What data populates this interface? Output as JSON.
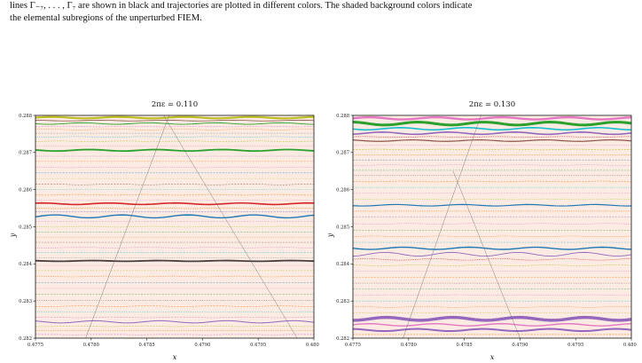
{
  "caption": {
    "line1": "lines Γ₋₇, . . . , Γ₇ are shown in black and trajectories are plotted in different colors. The shaded background colors indicate",
    "line2": "the elemental subregions of the unperturbed FIEM."
  },
  "colors": {
    "background_fill": "#fbebe3",
    "palette": [
      "#1f77b4",
      "#ff7f0e",
      "#2ca02c",
      "#d62728",
      "#9467bd",
      "#8c564b",
      "#e377c2",
      "#7f7f7f",
      "#bcbd22",
      "#17becf"
    ]
  },
  "chart_data": [
    {
      "type": "scatter",
      "title": "2πε = 0.110",
      "xlabel": "x",
      "ylabel": "y",
      "xlim": [
        0.4775,
        0.48
      ],
      "ylim": [
        0.282,
        0.288
      ],
      "xticks": [
        "0.4775",
        "0.4780",
        "0.4785",
        "0.4790",
        "0.4795",
        "0.4800"
      ],
      "yticks": [
        "0.282",
        "0.283",
        "0.284",
        "0.285",
        "0.286",
        "0.287",
        "0.288"
      ],
      "grid": false,
      "legend": "none",
      "background": "shaded subregion",
      "boundary_lines": [
        {
          "points": [
            [
              0.47795,
              0.282
            ],
            [
              0.4787,
              0.288
            ]
          ]
        },
        {
          "points": [
            [
              0.47865,
              0.288
            ],
            [
              0.47985,
              0.282
            ]
          ]
        }
      ],
      "series": [
        {
          "y": 0.28794,
          "color": "#bcbd22",
          "width": 2.2,
          "wave": 2e-05
        },
        {
          "y": 0.28786,
          "color": "#8c564b",
          "width": 0.8,
          "wave": 1e-05
        },
        {
          "y": 0.28778,
          "color": "#2ca02c",
          "width": 0.9,
          "wave": 2e-05
        },
        {
          "y": 0.2877,
          "color": "#e377c2",
          "width": 0.5,
          "wave": 1e-05
        },
        {
          "y": 0.28762,
          "color": "#ff7f0e",
          "width": 0.5,
          "wave": 1e-05
        },
        {
          "y": 0.28752,
          "color": "#7f7f7f",
          "width": 0.4,
          "wave": 0.0
        },
        {
          "y": 0.28742,
          "color": "#17becf",
          "width": 0.5,
          "wave": 1e-05
        },
        {
          "y": 0.2873,
          "color": "#bcbd22",
          "width": 0.5,
          "wave": 1e-05
        },
        {
          "y": 0.28718,
          "color": "#e377c2",
          "width": 0.4,
          "wave": 0.0
        },
        {
          "y": 0.28706,
          "color": "#2ca02c",
          "width": 1.8,
          "wave": 2e-05
        },
        {
          "y": 0.2869,
          "color": "#9467bd",
          "width": 0.4,
          "wave": 0.0
        },
        {
          "y": 0.28676,
          "color": "#ff7f0e",
          "width": 0.4,
          "wave": 0.0
        },
        {
          "y": 0.2866,
          "color": "#e377c2",
          "width": 0.5,
          "wave": 1e-05
        },
        {
          "y": 0.28645,
          "color": "#1f77b4",
          "width": 0.4,
          "wave": 0.0
        },
        {
          "y": 0.2863,
          "color": "#bcbd22",
          "width": 0.4,
          "wave": 0.0
        },
        {
          "y": 0.28614,
          "color": "#8c564b",
          "width": 0.5,
          "wave": 1e-05
        },
        {
          "y": 0.286,
          "color": "#17becf",
          "width": 0.4,
          "wave": 0.0
        },
        {
          "y": 0.28586,
          "color": "#ff7f0e",
          "width": 0.5,
          "wave": 1e-05
        },
        {
          "y": 0.28572,
          "color": "#e377c2",
          "width": 0.4,
          "wave": 0.0
        },
        {
          "y": 0.28562,
          "color": "#d62728",
          "width": 1.6,
          "wave": 2e-05
        },
        {
          "y": 0.2855,
          "color": "#ff7f0e",
          "width": 0.6,
          "wave": 1e-05
        },
        {
          "y": 0.2854,
          "color": "#9467bd",
          "width": 0.5,
          "wave": 0.0
        },
        {
          "y": 0.28528,
          "color": "#1f77b4",
          "width": 1.4,
          "wave": 4e-05
        },
        {
          "y": 0.28514,
          "color": "#e377c2",
          "width": 0.4,
          "wave": 0.0
        },
        {
          "y": 0.285,
          "color": "#bcbd22",
          "width": 0.5,
          "wave": 1e-05
        },
        {
          "y": 0.28486,
          "color": "#2ca02c",
          "width": 0.4,
          "wave": 0.0
        },
        {
          "y": 0.28472,
          "color": "#ff7f0e",
          "width": 0.4,
          "wave": 0.0
        },
        {
          "y": 0.28458,
          "color": "#8c564b",
          "width": 0.4,
          "wave": 0.0
        },
        {
          "y": 0.28444,
          "color": "#e377c2",
          "width": 0.5,
          "wave": 1e-05
        },
        {
          "y": 0.2843,
          "color": "#17becf",
          "width": 0.4,
          "wave": 0.0
        },
        {
          "y": 0.28416,
          "color": "#7f7f7f",
          "width": 0.4,
          "wave": 0.0
        },
        {
          "y": 0.28408,
          "color": "#4a3f3f",
          "width": 1.8,
          "wave": 1e-05
        },
        {
          "y": 0.28396,
          "color": "#e377c2",
          "width": 0.4,
          "wave": 0.0
        },
        {
          "y": 0.28382,
          "color": "#bcbd22",
          "width": 0.4,
          "wave": 0.0
        },
        {
          "y": 0.28366,
          "color": "#ff7f0e",
          "width": 0.5,
          "wave": 1e-05
        },
        {
          "y": 0.2835,
          "color": "#1f77b4",
          "width": 0.4,
          "wave": 0.0
        },
        {
          "y": 0.28334,
          "color": "#e377c2",
          "width": 0.4,
          "wave": 0.0
        },
        {
          "y": 0.28318,
          "color": "#2ca02c",
          "width": 0.4,
          "wave": 0.0
        },
        {
          "y": 0.28302,
          "color": "#8c564b",
          "width": 0.4,
          "wave": 0.0
        },
        {
          "y": 0.28286,
          "color": "#ff7f0e",
          "width": 0.5,
          "wave": 1e-05
        },
        {
          "y": 0.2827,
          "color": "#17becf",
          "width": 0.4,
          "wave": 0.0
        },
        {
          "y": 0.28256,
          "color": "#e377c2",
          "width": 0.5,
          "wave": 1e-05
        },
        {
          "y": 0.28244,
          "color": "#9467bd",
          "width": 1.0,
          "wave": 3e-05
        },
        {
          "y": 0.28232,
          "color": "#bcbd22",
          "width": 0.5,
          "wave": 1e-05
        },
        {
          "y": 0.2822,
          "color": "#ff7f0e",
          "width": 0.5,
          "wave": 0.0
        },
        {
          "y": 0.2821,
          "color": "#e377c2",
          "width": 0.5,
          "wave": 1e-05
        }
      ]
    },
    {
      "type": "scatter",
      "title": "2πε = 0.130",
      "xlabel": "x",
      "ylabel": "y",
      "xlim": [
        0.4775,
        0.48
      ],
      "ylim": [
        0.282,
        0.288
      ],
      "xticks": [
        "0.4775",
        "0.4780",
        "0.4785",
        "0.4790",
        "0.4795",
        "0.4800"
      ],
      "yticks": [
        "0.282",
        "0.283",
        "0.284",
        "0.285",
        "0.286",
        "0.287",
        "0.288"
      ],
      "grid": false,
      "legend": "none",
      "background": "shaded subregion",
      "boundary_lines": [
        {
          "points": [
            [
              0.47795,
              0.282
            ],
            [
              0.47865,
              0.288
            ]
          ]
        },
        {
          "points": [
            [
              0.4784,
              0.2865
            ],
            [
              0.479,
              0.282
            ]
          ]
        }
      ],
      "series": [
        {
          "y": 0.28792,
          "color": "#e377c2",
          "width": 2.4,
          "wave": 3e-05
        },
        {
          "y": 0.28778,
          "color": "#2ca02c",
          "width": 3.0,
          "wave": 4e-05
        },
        {
          "y": 0.28764,
          "color": "#17becf",
          "width": 1.6,
          "wave": 3e-05
        },
        {
          "y": 0.28752,
          "color": "#9467bd",
          "width": 1.6,
          "wave": 3e-05
        },
        {
          "y": 0.28742,
          "color": "#d62728",
          "width": 0.6,
          "wave": 1e-05
        },
        {
          "y": 0.28732,
          "color": "#8c564b",
          "width": 1.2,
          "wave": 2e-05
        },
        {
          "y": 0.2872,
          "color": "#e377c2",
          "width": 0.5,
          "wave": 1e-05
        },
        {
          "y": 0.28708,
          "color": "#bcbd22",
          "width": 0.6,
          "wave": 1e-05
        },
        {
          "y": 0.28694,
          "color": "#ff7f0e",
          "width": 0.5,
          "wave": 0.0
        },
        {
          "y": 0.2868,
          "color": "#1f77b4",
          "width": 0.4,
          "wave": 0.0
        },
        {
          "y": 0.28666,
          "color": "#e377c2",
          "width": 0.5,
          "wave": 1e-05
        },
        {
          "y": 0.28652,
          "color": "#2ca02c",
          "width": 0.4,
          "wave": 0.0
        },
        {
          "y": 0.28638,
          "color": "#8c564b",
          "width": 0.4,
          "wave": 0.0
        },
        {
          "y": 0.28622,
          "color": "#ff7f0e",
          "width": 0.5,
          "wave": 1e-05
        },
        {
          "y": 0.28606,
          "color": "#17becf",
          "width": 0.4,
          "wave": 0.0
        },
        {
          "y": 0.2859,
          "color": "#e377c2",
          "width": 0.4,
          "wave": 0.0
        },
        {
          "y": 0.28574,
          "color": "#bcbd22",
          "width": 0.5,
          "wave": 1e-05
        },
        {
          "y": 0.28558,
          "color": "#1f77b4",
          "width": 1.2,
          "wave": 2e-05
        },
        {
          "y": 0.28542,
          "color": "#ff7f0e",
          "width": 0.5,
          "wave": 0.0
        },
        {
          "y": 0.28526,
          "color": "#9467bd",
          "width": 0.4,
          "wave": 0.0
        },
        {
          "y": 0.28508,
          "color": "#e377c2",
          "width": 0.5,
          "wave": 1e-05
        },
        {
          "y": 0.2849,
          "color": "#2ca02c",
          "width": 0.4,
          "wave": 0.0
        },
        {
          "y": 0.28474,
          "color": "#ff7f0e",
          "width": 0.5,
          "wave": 1e-05
        },
        {
          "y": 0.28458,
          "color": "#17becf",
          "width": 0.4,
          "wave": 0.0
        },
        {
          "y": 0.28442,
          "color": "#1f77b4",
          "width": 1.4,
          "wave": 3e-05
        },
        {
          "y": 0.28426,
          "color": "#9467bd",
          "width": 0.9,
          "wave": 5e-05
        },
        {
          "y": 0.28412,
          "color": "#d62728",
          "width": 0.6,
          "wave": 2e-05
        },
        {
          "y": 0.28396,
          "color": "#bcbd22",
          "width": 0.5,
          "wave": 1e-05
        },
        {
          "y": 0.2838,
          "color": "#e377c2",
          "width": 0.4,
          "wave": 0.0
        },
        {
          "y": 0.28364,
          "color": "#ff7f0e",
          "width": 0.4,
          "wave": 0.0
        },
        {
          "y": 0.28348,
          "color": "#8c564b",
          "width": 0.4,
          "wave": 0.0
        },
        {
          "y": 0.28332,
          "color": "#2ca02c",
          "width": 0.4,
          "wave": 0.0
        },
        {
          "y": 0.28316,
          "color": "#e377c2",
          "width": 0.5,
          "wave": 1e-05
        },
        {
          "y": 0.283,
          "color": "#17becf",
          "width": 0.4,
          "wave": 0.0
        },
        {
          "y": 0.28284,
          "color": "#ff7f0e",
          "width": 0.5,
          "wave": 1e-05
        },
        {
          "y": 0.28268,
          "color": "#bcbd22",
          "width": 0.4,
          "wave": 0.0
        },
        {
          "y": 0.28252,
          "color": "#9467bd",
          "width": 3.4,
          "wave": 4e-05
        },
        {
          "y": 0.28236,
          "color": "#e377c2",
          "width": 1.4,
          "wave": 3e-05
        },
        {
          "y": 0.28222,
          "color": "#9467bd",
          "width": 2.0,
          "wave": 3e-05
        },
        {
          "y": 0.2821,
          "color": "#ff7f0e",
          "width": 0.5,
          "wave": 0.0
        }
      ]
    }
  ]
}
